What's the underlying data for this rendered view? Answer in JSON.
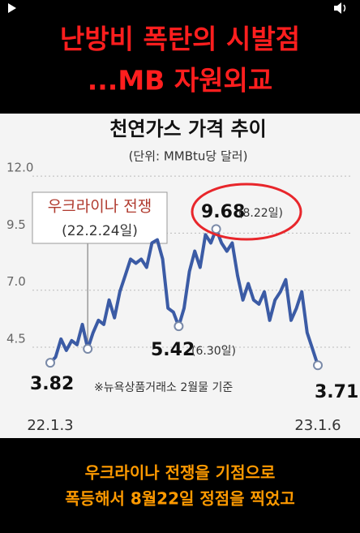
{
  "overlay": {
    "title_lines": [
      "난방비 폭탄의 시발점",
      "...MB 자원외교"
    ],
    "caption_lines": [
      "우크라이나 전쟁을 기점으로",
      "폭등해서 8월22일 정점을 찍었고"
    ]
  },
  "chart_data": {
    "type": "line",
    "title": "천연가스 가격 추이",
    "subtitle": "(단위: MMBtu당 달러)",
    "categories": [
      "22.1.3",
      null,
      null,
      null,
      null,
      null,
      null,
      null,
      null,
      null,
      null,
      null,
      null,
      null,
      null,
      null,
      null,
      null,
      null,
      null,
      null,
      null,
      null,
      null,
      null,
      null,
      null,
      null,
      null,
      null,
      null,
      null,
      null,
      null,
      null,
      null,
      null,
      null,
      null,
      null,
      null,
      null,
      null,
      null,
      null,
      null,
      null,
      null,
      null,
      null,
      "23.1.6"
    ],
    "series": [
      {
        "name": "천연가스 가격",
        "color": "#3b5ba5",
        "values": [
          3.82,
          4.07,
          4.86,
          4.36,
          4.79,
          4.61,
          5.5,
          4.43,
          5.14,
          5.68,
          5.5,
          6.57,
          5.79,
          6.93,
          7.64,
          8.36,
          8.18,
          8.36,
          8.0,
          9.07,
          9.21,
          8.36,
          6.21,
          6.04,
          5.42,
          6.21,
          7.82,
          8.71,
          8.0,
          9.43,
          9.07,
          9.68,
          9.07,
          8.71,
          9.07,
          7.64,
          6.57,
          7.29,
          6.57,
          6.39,
          6.93,
          5.68,
          6.57,
          6.93,
          7.46,
          5.68,
          6.21,
          6.93,
          5.14,
          4.43,
          3.71
        ]
      }
    ],
    "ylim": [
      1.5,
      12.5
    ],
    "yticks": [
      4.5,
      {
        "value": 7,
        "label": "7.0"
      },
      9.5,
      {
        "value": 12,
        "label": "12.0"
      }
    ],
    "grid": true,
    "annotations": [
      {
        "text": "우크라이나 전쟁",
        "date": "(22.2.24일)"
      },
      {
        "text": "9.68",
        "date": "(8.22일)"
      },
      {
        "text": "5.42",
        "date": "(6.30일)"
      },
      {
        "text": "3.82"
      },
      {
        "text": "3.71"
      }
    ],
    "note": "※뉴욕상품거래소 2월물 기준"
  }
}
